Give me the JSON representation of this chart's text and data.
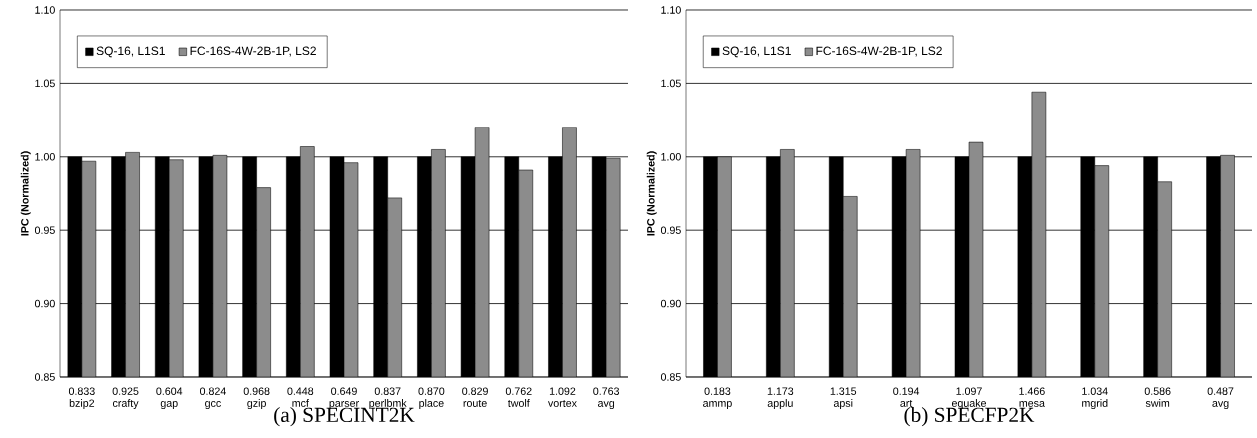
{
  "chart_data": [
    {
      "type": "bar",
      "title": "(a)  SPECINT2K",
      "ylabel": "IPC (Normalized)",
      "categories": [
        "bzip2",
        "crafty",
        "gap",
        "gcc",
        "gzip",
        "mcf",
        "parser",
        "perlbmk",
        "place",
        "route",
        "twolf",
        "vortex",
        "avg"
      ],
      "series": [
        {
          "name": "SQ-16, L1S1",
          "color": "#000000",
          "values": [
            1,
            1,
            1,
            1,
            1,
            1,
            1,
            1,
            1,
            1,
            1,
            1,
            1
          ]
        },
        {
          "name": "FC-16S-4W-2B-1P, LS2",
          "color": "#8c8c8c",
          "values": [
            0.997,
            1.003,
            0.998,
            1.001,
            0.979,
            1.007,
            0.996,
            0.972,
            1.005,
            1.02,
            0.991,
            1.02,
            0.999
          ]
        }
      ],
      "annotations": [
        "0.833",
        "0.925",
        "0.604",
        "0.824",
        "0.968",
        "0.448",
        "0.649",
        "0.837",
        "0.870",
        "0.829",
        "0.762",
        "1.092",
        "0.763"
      ],
      "ylim": [
        0.85,
        1.1
      ],
      "yticks": [
        {
          "value": 0.85,
          "label": "0.85"
        },
        {
          "value": 0.9,
          "label": "0.90"
        },
        {
          "value": 0.95,
          "label": "0.95"
        },
        {
          "value": 1.0,
          "label": "1.00"
        },
        {
          "value": 1.05,
          "label": "1.05"
        },
        {
          "value": 1.1,
          "label": "1.10"
        }
      ],
      "grid": "y",
      "legend": "top left"
    },
    {
      "type": "bar",
      "title": "(b)  SPECFP2K",
      "ylabel": "IPC (Normalized)",
      "categories": [
        "ammp",
        "applu",
        "apsi",
        "art",
        "equake",
        "mesa",
        "mgrid",
        "swim",
        "avg"
      ],
      "series": [
        {
          "name": "SQ-16, L1S1",
          "color": "#000000",
          "values": [
            1,
            1,
            1,
            1,
            1,
            1,
            1,
            1,
            1
          ]
        },
        {
          "name": "FC-16S-4W-2B-1P, LS2",
          "color": "#8c8c8c",
          "values": [
            1.0,
            1.005,
            0.973,
            1.005,
            1.01,
            1.044,
            0.994,
            0.983,
            1.001
          ]
        }
      ],
      "annotations": [
        "0.183",
        "1.173",
        "1.315",
        "0.194",
        "1.097",
        "1.466",
        "1.034",
        "0.586",
        "0.487"
      ],
      "ylim": [
        0.85,
        1.1
      ],
      "yticks": [
        {
          "value": 0.85,
          "label": "0.85"
        },
        {
          "value": 0.9,
          "label": "0.90"
        },
        {
          "value": 0.95,
          "label": "0.95"
        },
        {
          "value": 1.0,
          "label": "1.00"
        },
        {
          "value": 1.05,
          "label": "1.05"
        },
        {
          "value": 1.1,
          "label": "1.10"
        }
      ],
      "grid": "y",
      "legend": "top left"
    }
  ]
}
